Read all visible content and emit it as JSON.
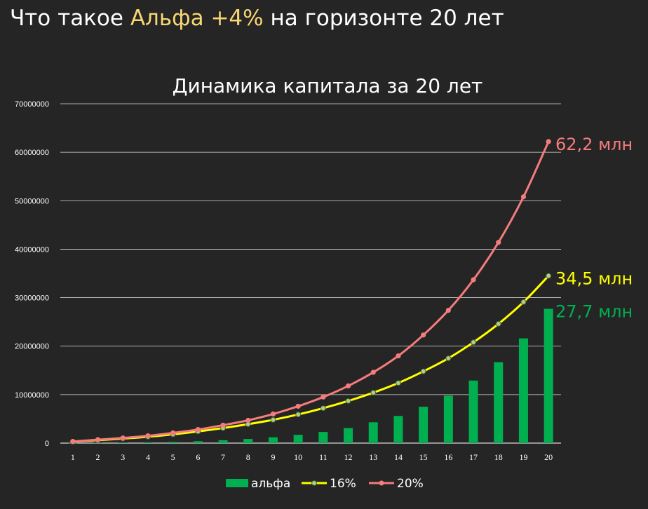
{
  "header": {
    "title_before": "Что такое ",
    "title_accent": "Альфа +4%",
    "title_after": " на горизонте 20 лет"
  },
  "colors": {
    "background": "#252525",
    "accent_text": "#f7d774",
    "alpha_bars": "#00b050",
    "line_16": "#ffff00",
    "line_20": "#f47c7c",
    "gridline": "#d9d9d9"
  },
  "chart_data": {
    "type": "bar+line",
    "title": "Динамика капитала за 20 лет",
    "categories": [
      "1",
      "2",
      "3",
      "4",
      "5",
      "6",
      "7",
      "8",
      "9",
      "10",
      "11",
      "12",
      "13",
      "14",
      "15",
      "16",
      "17",
      "18",
      "19",
      "20"
    ],
    "y_ticks": [
      "0",
      "10000000",
      "20000000",
      "30000000",
      "40000000",
      "50000000",
      "60000000",
      "70000000"
    ],
    "ylim": [
      0,
      70000000
    ],
    "grid": true,
    "legend_position": "bottom",
    "series": [
      {
        "name": "альфа",
        "kind": "bar",
        "color": "#00b050",
        "values": [
          24000,
          58000,
          106000,
          170000,
          253000,
          400000,
          600000,
          850000,
          1200000,
          1700000,
          2300000,
          3100000,
          4300000,
          5600000,
          7500000,
          9800000,
          12900000,
          16700000,
          21600000,
          27700000
        ]
      },
      {
        "name": "16%",
        "kind": "line",
        "color": "#ffff00",
        "values": [
          300000,
          600000,
          930000,
          1300000,
          1800000,
          2400000,
          3100000,
          3900000,
          4800000,
          5900000,
          7200000,
          8700000,
          10400000,
          12400000,
          14800000,
          17500000,
          20800000,
          24600000,
          29100000,
          34500000
        ]
      },
      {
        "name": "20%",
        "kind": "line",
        "color": "#f47c7c",
        "values": [
          340000,
          700000,
          1060000,
          1500000,
          2100000,
          2800000,
          3700000,
          4700000,
          6000000,
          7600000,
          9500000,
          11800000,
          14600000,
          18000000,
          22300000,
          27400000,
          33700000,
          41400000,
          50800000,
          62200000
        ]
      }
    ],
    "end_labels": [
      {
        "text": "62,2 млн",
        "series": "20%",
        "color": "#f47c7c"
      },
      {
        "text": "34,5 млн",
        "series": "16%",
        "color": "#ffff00"
      },
      {
        "text": "27,7 млн",
        "series": "альфа",
        "color": "#00b050"
      }
    ]
  }
}
